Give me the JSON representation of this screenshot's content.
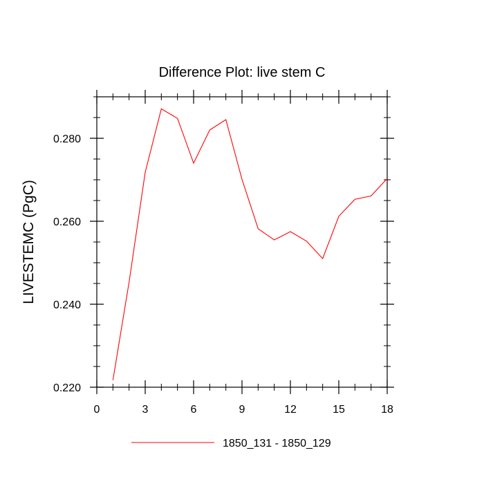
{
  "chart_data": {
    "type": "line",
    "title": "Difference Plot: live stem C",
    "xlabel": "",
    "ylabel": "LIVESTEMC  (PgC)",
    "xlim": [
      0,
      18
    ],
    "ylim": [
      0.22,
      0.29
    ],
    "x_ticks": [
      0,
      3,
      6,
      9,
      12,
      15,
      18
    ],
    "x_tick_labels": [
      "0",
      "3",
      "6",
      "9",
      "12",
      "15",
      "18"
    ],
    "y_ticks": [
      0.22,
      0.24,
      0.26,
      0.28
    ],
    "y_tick_labels": [
      "0.220",
      "0.240",
      "0.260",
      "0.280"
    ],
    "grid": false,
    "legend_position": "bottom-center",
    "series": [
      {
        "name": "1850_131 - 1850_129",
        "color": "#ff0000",
        "x": [
          1,
          2,
          3,
          4,
          5,
          6,
          7,
          8,
          9,
          10,
          11,
          12,
          13,
          14,
          15,
          16,
          17,
          18
        ],
        "values": [
          0.2217,
          0.2453,
          0.2718,
          0.2871,
          0.2848,
          0.274,
          0.282,
          0.2845,
          0.2701,
          0.2582,
          0.2555,
          0.2575,
          0.2552,
          0.251,
          0.2612,
          0.2653,
          0.2661,
          0.2703
        ]
      }
    ]
  }
}
